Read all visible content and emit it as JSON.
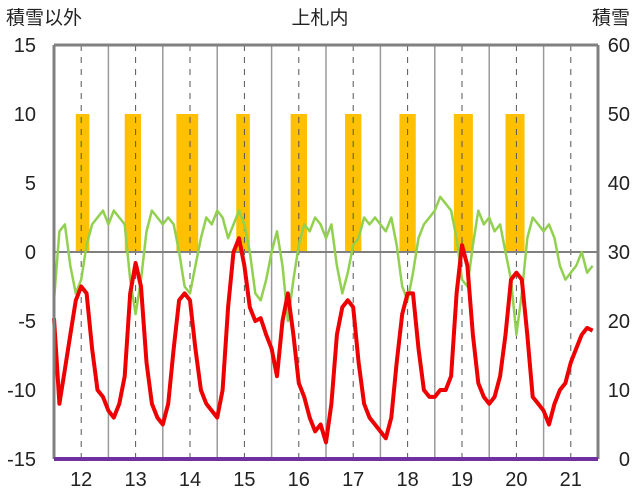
{
  "chart_data": {
    "type": "line",
    "title": "上札内",
    "left_axis_label": "積雪以外",
    "right_axis_label": "積雪",
    "x_ticks": [
      "12",
      "13",
      "14",
      "15",
      "16",
      "17",
      "18",
      "19",
      "20",
      "21"
    ],
    "y_ticks": [
      "15",
      "10",
      "5",
      "0",
      "-5",
      "-10",
      "-15"
    ],
    "y2_ticks": [
      "60",
      "50",
      "40",
      "30",
      "20",
      "10",
      "0"
    ],
    "ylim": [
      -15,
      15
    ],
    "y2lim": [
      0,
      60
    ],
    "xlim": [
      11.5,
      21.5
    ],
    "grid": true,
    "colors": {
      "red": "#ee0000",
      "green": "#92d050",
      "snow": "#ffc000",
      "frame": "#808080",
      "zero": "#808080",
      "bottom": "#7030a0"
    },
    "series": [
      {
        "color_key": "red",
        "x": [
          11.5,
          11.6,
          11.7,
          11.8,
          11.9,
          12.0,
          12.1,
          12.2,
          12.3,
          12.4,
          12.5,
          12.6,
          12.7,
          12.8,
          12.9,
          13.0,
          13.1,
          13.2,
          13.3,
          13.4,
          13.5,
          13.6,
          13.7,
          13.8,
          13.9,
          14.0,
          14.1,
          14.2,
          14.3,
          14.4,
          14.5,
          14.6,
          14.7,
          14.8,
          14.9,
          15.0,
          15.1,
          15.2,
          15.3,
          15.4,
          15.5,
          15.6,
          15.7,
          15.8,
          15.9,
          16.0,
          16.1,
          16.2,
          16.3,
          16.4,
          16.5,
          16.6,
          16.7,
          16.8,
          16.9,
          17.0,
          17.1,
          17.2,
          17.3,
          17.4,
          17.5,
          17.6,
          17.7,
          17.8,
          17.9,
          18.0,
          18.1,
          18.2,
          18.3,
          18.4,
          18.5,
          18.6,
          18.7,
          18.8,
          18.9,
          19.0,
          19.1,
          19.2,
          19.3,
          19.4,
          19.5,
          19.6,
          19.7,
          19.8,
          19.9,
          20.0,
          20.1,
          20.2,
          20.3,
          20.4,
          20.5,
          20.6,
          20.7,
          20.8,
          20.9,
          21.0,
          21.1,
          21.2,
          21.3,
          21.4
        ],
        "y": [
          -4.8,
          -11.0,
          -8.5,
          -6.0,
          -3.5,
          -2.5,
          -3.0,
          -7.0,
          -10.0,
          -10.5,
          -11.5,
          -12.0,
          -11.0,
          -9.0,
          -3.0,
          -0.8,
          -2.5,
          -8.0,
          -11.0,
          -12.0,
          -12.5,
          -11.0,
          -7.0,
          -3.5,
          -3.0,
          -3.5,
          -7.0,
          -10.0,
          -11.0,
          -11.5,
          -12.0,
          -10.0,
          -4.0,
          0.0,
          1.0,
          -1.0,
          -4.0,
          -5.0,
          -4.8,
          -6.0,
          -7.0,
          -9.0,
          -5.0,
          -3.0,
          -6.0,
          -9.5,
          -10.5,
          -12.0,
          -13.0,
          -12.5,
          -13.8,
          -11.0,
          -6.0,
          -4.0,
          -3.5,
          -4.0,
          -8.0,
          -11.0,
          -12.0,
          -12.5,
          -13.0,
          -13.5,
          -12.0,
          -8.0,
          -4.5,
          -3.0,
          -3.0,
          -7.0,
          -10.0,
          -10.5,
          -10.5,
          -10.0,
          -10.0,
          -9.0,
          -3.0,
          0.5,
          -1.0,
          -6.0,
          -9.5,
          -10.5,
          -11.0,
          -10.5,
          -9.0,
          -6.0,
          -2.0,
          -1.5,
          -2.0,
          -6.0,
          -10.5,
          -11.0,
          -11.5,
          -12.5,
          -11.0,
          -10.0,
          -9.5,
          -8.0,
          -7.0,
          -6.0,
          -5.5,
          -5.7
        ]
      },
      {
        "color_key": "green",
        "x": [
          11.5,
          11.6,
          11.7,
          11.8,
          11.9,
          12.0,
          12.1,
          12.2,
          12.3,
          12.4,
          12.5,
          12.6,
          12.7,
          12.8,
          12.9,
          13.0,
          13.1,
          13.2,
          13.3,
          13.4,
          13.5,
          13.6,
          13.7,
          13.8,
          13.9,
          14.0,
          14.1,
          14.2,
          14.3,
          14.4,
          14.5,
          14.6,
          14.7,
          14.8,
          14.9,
          15.0,
          15.1,
          15.2,
          15.3,
          15.4,
          15.5,
          15.6,
          15.7,
          15.8,
          15.9,
          16.0,
          16.1,
          16.2,
          16.3,
          16.4,
          16.5,
          16.6,
          16.7,
          16.8,
          16.9,
          17.0,
          17.1,
          17.2,
          17.3,
          17.4,
          17.5,
          17.6,
          17.7,
          17.8,
          17.9,
          18.0,
          18.1,
          18.2,
          18.3,
          18.4,
          18.5,
          18.6,
          18.7,
          18.8,
          18.9,
          19.0,
          19.1,
          19.2,
          19.3,
          19.4,
          19.5,
          19.6,
          19.7,
          19.8,
          19.9,
          20.0,
          20.1,
          20.2,
          20.3,
          20.4,
          20.5,
          20.6,
          20.7,
          20.8,
          20.9,
          21.0,
          21.1,
          21.2,
          21.3,
          21.4
        ],
        "y": [
          -3.5,
          1.5,
          2.0,
          -1.0,
          -3.0,
          -2.0,
          0.5,
          2.0,
          2.5,
          3.0,
          2.0,
          3.0,
          2.5,
          2.0,
          -2.0,
          -4.5,
          -2.0,
          1.5,
          3.0,
          2.5,
          2.0,
          2.5,
          2.0,
          0.0,
          -2.5,
          -3.0,
          -1.0,
          1.0,
          2.5,
          2.0,
          3.0,
          2.5,
          1.0,
          2.0,
          3.0,
          2.0,
          0.0,
          -3.0,
          -3.5,
          -2.0,
          0.0,
          1.5,
          -1.0,
          -5.0,
          -2.0,
          0.5,
          2.0,
          1.5,
          2.5,
          2.0,
          1.0,
          2.0,
          -1.0,
          -3.0,
          -1.5,
          0.5,
          1.0,
          2.5,
          2.0,
          2.5,
          2.0,
          1.5,
          2.5,
          0.5,
          -2.5,
          -3.5,
          -1.5,
          1.0,
          2.0,
          2.5,
          3.0,
          4.0,
          3.5,
          3.0,
          1.0,
          -2.0,
          -2.5,
          0.5,
          3.0,
          2.0,
          2.5,
          1.5,
          2.0,
          0.0,
          -2.0,
          -6.0,
          -3.0,
          1.0,
          2.5,
          2.0,
          1.5,
          2.0,
          1.0,
          -1.0,
          -2.0,
          -1.5,
          -1.0,
          0.0,
          -1.5,
          -1.0
        ]
      }
    ],
    "snow_periods": [
      {
        "start": 11.9,
        "end": 12.15,
        "value": 50
      },
      {
        "start": 12.8,
        "end": 13.1,
        "value": 50
      },
      {
        "start": 13.75,
        "end": 14.15,
        "value": 50
      },
      {
        "start": 14.85,
        "end": 15.1,
        "value": 50
      },
      {
        "start": 15.85,
        "end": 16.15,
        "value": 50
      },
      {
        "start": 16.85,
        "end": 17.15,
        "value": 50
      },
      {
        "start": 17.85,
        "end": 18.15,
        "value": 50
      },
      {
        "start": 18.85,
        "end": 19.2,
        "value": 50
      },
      {
        "start": 19.8,
        "end": 20.15,
        "value": 50
      }
    ]
  }
}
